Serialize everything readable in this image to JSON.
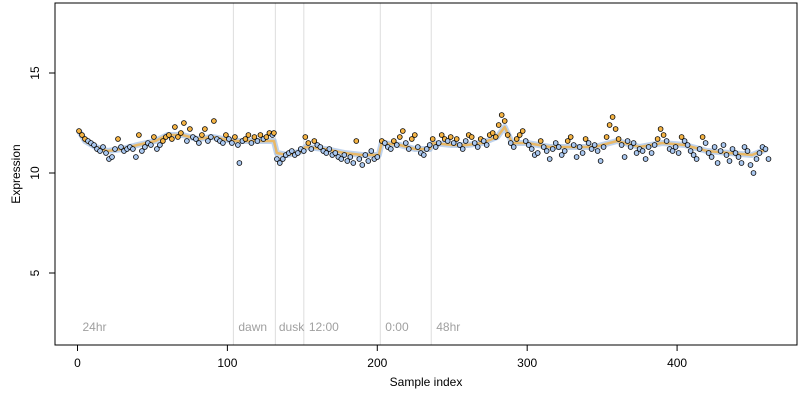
{
  "chart_data": {
    "type": "scatter",
    "title": "",
    "xlabel": "Sample index",
    "ylabel": "Expression",
    "xlim": [
      -15,
      480
    ],
    "ylim": [
      1.4,
      18.5
    ],
    "x_ticks": [
      0,
      100,
      200,
      300,
      400
    ],
    "y_ticks": [
      5,
      10,
      15
    ],
    "grid": false,
    "legend": "none",
    "colors": {
      "line": "#f0b450",
      "band": "#8aaee0",
      "point_orange": "#f5b445",
      "point_blue": "#aac8f0",
      "point_stroke": "#000000",
      "separator": "#dddddd",
      "condition_text": "#a0a0a0"
    },
    "separators": [
      104,
      132,
      151,
      202,
      236
    ],
    "condition_labels": [
      {
        "text": "24hr",
        "x": 2
      },
      {
        "text": "dawn",
        "x": 106
      },
      {
        "text": "dusk",
        "x": 133
      },
      {
        "text": "12:00",
        "x": 153
      },
      {
        "text": "0:00",
        "x": 204
      },
      {
        "text": "48hr",
        "x": 238
      }
    ],
    "trend": [
      [
        1,
        12.1
      ],
      [
        5,
        11.6
      ],
      [
        12,
        11.3
      ],
      [
        20,
        11.1
      ],
      [
        30,
        11.2
      ],
      [
        40,
        11.4
      ],
      [
        52,
        11.6
      ],
      [
        60,
        11.9
      ],
      [
        70,
        11.9
      ],
      [
        80,
        11.7
      ],
      [
        90,
        11.8
      ],
      [
        104,
        11.6
      ],
      [
        104,
        11.6
      ],
      [
        118,
        11.6
      ],
      [
        131,
        11.6
      ],
      [
        133,
        11.0
      ],
      [
        140,
        10.9
      ],
      [
        150,
        11.1
      ],
      [
        152,
        11.3
      ],
      [
        165,
        11.2
      ],
      [
        178,
        11.0
      ],
      [
        190,
        10.9
      ],
      [
        201,
        10.9
      ],
      [
        203,
        11.5
      ],
      [
        215,
        11.4
      ],
      [
        225,
        11.2
      ],
      [
        235,
        11.2
      ],
      [
        237,
        11.5
      ],
      [
        250,
        11.4
      ],
      [
        260,
        11.4
      ],
      [
        270,
        11.5
      ],
      [
        280,
        11.8
      ],
      [
        285,
        12.3
      ],
      [
        290,
        11.5
      ],
      [
        300,
        11.5
      ],
      [
        315,
        11.3
      ],
      [
        330,
        11.3
      ],
      [
        345,
        11.3
      ],
      [
        360,
        11.6
      ],
      [
        375,
        11.3
      ],
      [
        390,
        11.5
      ],
      [
        405,
        11.4
      ],
      [
        420,
        11.1
      ],
      [
        435,
        11.0
      ],
      [
        450,
        10.9
      ],
      [
        460,
        11.2
      ]
    ],
    "points": [
      [
        1,
        12.1,
        "o"
      ],
      [
        3,
        11.9,
        "o"
      ],
      [
        5,
        11.7,
        "o"
      ],
      [
        7,
        11.6,
        "b"
      ],
      [
        9,
        11.5,
        "b"
      ],
      [
        11,
        11.4,
        "b"
      ],
      [
        13,
        11.2,
        "b"
      ],
      [
        15,
        11.1,
        "b"
      ],
      [
        17,
        11.3,
        "b"
      ],
      [
        19,
        11.0,
        "b"
      ],
      [
        21,
        10.7,
        "b"
      ],
      [
        23,
        10.8,
        "b"
      ],
      [
        25,
        11.2,
        "b"
      ],
      [
        27,
        11.7,
        "o"
      ],
      [
        29,
        11.3,
        "b"
      ],
      [
        31,
        11.1,
        "b"
      ],
      [
        33,
        11.2,
        "b"
      ],
      [
        35,
        11.3,
        "b"
      ],
      [
        37,
        11.2,
        "b"
      ],
      [
        39,
        10.8,
        "b"
      ],
      [
        41,
        11.9,
        "o"
      ],
      [
        43,
        11.1,
        "b"
      ],
      [
        45,
        11.3,
        "b"
      ],
      [
        47,
        11.5,
        "b"
      ],
      [
        49,
        11.4,
        "b"
      ],
      [
        51,
        11.8,
        "o"
      ],
      [
        53,
        11.2,
        "b"
      ],
      [
        55,
        11.4,
        "b"
      ],
      [
        57,
        11.6,
        "o"
      ],
      [
        59,
        11.8,
        "o"
      ],
      [
        61,
        11.9,
        "o"
      ],
      [
        63,
        11.7,
        "o"
      ],
      [
        65,
        12.3,
        "o"
      ],
      [
        67,
        11.8,
        "o"
      ],
      [
        69,
        12.0,
        "o"
      ],
      [
        71,
        12.5,
        "o"
      ],
      [
        73,
        11.6,
        "b"
      ],
      [
        75,
        12.2,
        "o"
      ],
      [
        77,
        11.8,
        "b"
      ],
      [
        79,
        11.7,
        "b"
      ],
      [
        81,
        11.5,
        "b"
      ],
      [
        83,
        11.9,
        "o"
      ],
      [
        85,
        12.2,
        "o"
      ],
      [
        87,
        11.6,
        "b"
      ],
      [
        89,
        11.8,
        "b"
      ],
      [
        91,
        12.6,
        "o"
      ],
      [
        93,
        11.7,
        "b"
      ],
      [
        95,
        11.6,
        "b"
      ],
      [
        97,
        11.5,
        "b"
      ],
      [
        99,
        11.9,
        "o"
      ],
      [
        101,
        11.7,
        "b"
      ],
      [
        103,
        11.5,
        "b"
      ],
      [
        105,
        11.8,
        "o"
      ],
      [
        107,
        11.4,
        "b"
      ],
      [
        108,
        10.5,
        "b"
      ],
      [
        110,
        11.6,
        "b"
      ],
      [
        112,
        11.7,
        "o"
      ],
      [
        114,
        11.9,
        "o"
      ],
      [
        116,
        11.5,
        "b"
      ],
      [
        118,
        11.8,
        "o"
      ],
      [
        120,
        11.6,
        "b"
      ],
      [
        122,
        11.9,
        "o"
      ],
      [
        124,
        11.7,
        "b"
      ],
      [
        126,
        11.8,
        "o"
      ],
      [
        128,
        12.0,
        "o"
      ],
      [
        130,
        11.9,
        "b"
      ],
      [
        131,
        12.0,
        "o"
      ],
      [
        133,
        10.7,
        "b"
      ],
      [
        135,
        10.5,
        "b"
      ],
      [
        137,
        10.7,
        "b"
      ],
      [
        139,
        10.9,
        "b"
      ],
      [
        141,
        11.0,
        "b"
      ],
      [
        143,
        11.1,
        "b"
      ],
      [
        145,
        10.9,
        "b"
      ],
      [
        147,
        11.0,
        "b"
      ],
      [
        149,
        11.2,
        "b"
      ],
      [
        151,
        11.1,
        "b"
      ],
      [
        152,
        11.8,
        "o"
      ],
      [
        154,
        11.5,
        "o"
      ],
      [
        156,
        11.2,
        "b"
      ],
      [
        158,
        11.6,
        "o"
      ],
      [
        160,
        11.4,
        "b"
      ],
      [
        162,
        11.3,
        "b"
      ],
      [
        164,
        11.1,
        "b"
      ],
      [
        166,
        11.0,
        "b"
      ],
      [
        168,
        11.2,
        "b"
      ],
      [
        170,
        10.9,
        "b"
      ],
      [
        172,
        11.0,
        "b"
      ],
      [
        174,
        10.8,
        "b"
      ],
      [
        176,
        10.7,
        "b"
      ],
      [
        178,
        10.9,
        "b"
      ],
      [
        180,
        10.6,
        "b"
      ],
      [
        182,
        10.8,
        "b"
      ],
      [
        184,
        10.5,
        "b"
      ],
      [
        186,
        11.6,
        "o"
      ],
      [
        188,
        10.7,
        "b"
      ],
      [
        190,
        10.4,
        "b"
      ],
      [
        192,
        10.9,
        "b"
      ],
      [
        194,
        10.6,
        "b"
      ],
      [
        196,
        11.1,
        "b"
      ],
      [
        198,
        10.7,
        "b"
      ],
      [
        200,
        10.8,
        "b"
      ],
      [
        203,
        11.6,
        "o"
      ],
      [
        205,
        11.5,
        "b"
      ],
      [
        207,
        11.3,
        "b"
      ],
      [
        209,
        11.2,
        "b"
      ],
      [
        211,
        11.6,
        "o"
      ],
      [
        213,
        11.4,
        "b"
      ],
      [
        215,
        11.8,
        "o"
      ],
      [
        217,
        12.1,
        "o"
      ],
      [
        219,
        11.5,
        "b"
      ],
      [
        221,
        11.2,
        "b"
      ],
      [
        223,
        11.7,
        "o"
      ],
      [
        225,
        11.9,
        "o"
      ],
      [
        227,
        11.3,
        "b"
      ],
      [
        229,
        11.0,
        "b"
      ],
      [
        231,
        10.9,
        "b"
      ],
      [
        233,
        11.2,
        "b"
      ],
      [
        235,
        11.4,
        "b"
      ],
      [
        237,
        11.7,
        "o"
      ],
      [
        239,
        11.3,
        "b"
      ],
      [
        241,
        11.5,
        "b"
      ],
      [
        243,
        11.9,
        "o"
      ],
      [
        245,
        11.7,
        "o"
      ],
      [
        247,
        11.6,
        "b"
      ],
      [
        249,
        11.8,
        "o"
      ],
      [
        251,
        11.5,
        "b"
      ],
      [
        253,
        11.7,
        "o"
      ],
      [
        255,
        11.4,
        "b"
      ],
      [
        257,
        11.2,
        "b"
      ],
      [
        259,
        11.6,
        "b"
      ],
      [
        261,
        11.9,
        "o"
      ],
      [
        263,
        11.8,
        "o"
      ],
      [
        265,
        11.5,
        "b"
      ],
      [
        267,
        11.3,
        "b"
      ],
      [
        269,
        11.7,
        "o"
      ],
      [
        271,
        11.6,
        "b"
      ],
      [
        273,
        11.4,
        "b"
      ],
      [
        275,
        11.9,
        "o"
      ],
      [
        277,
        12.0,
        "o"
      ],
      [
        279,
        11.8,
        "o"
      ],
      [
        281,
        12.4,
        "o"
      ],
      [
        283,
        12.9,
        "o"
      ],
      [
        285,
        12.6,
        "o"
      ],
      [
        287,
        11.9,
        "o"
      ],
      [
        289,
        11.5,
        "b"
      ],
      [
        291,
        11.3,
        "b"
      ],
      [
        293,
        11.7,
        "o"
      ],
      [
        295,
        11.9,
        "o"
      ],
      [
        297,
        12.1,
        "o"
      ],
      [
        299,
        11.6,
        "b"
      ],
      [
        301,
        11.4,
        "b"
      ],
      [
        303,
        11.2,
        "b"
      ],
      [
        305,
        10.9,
        "b"
      ],
      [
        307,
        11.0,
        "b"
      ],
      [
        309,
        11.6,
        "o"
      ],
      [
        311,
        11.3,
        "b"
      ],
      [
        313,
        11.1,
        "b"
      ],
      [
        315,
        10.7,
        "b"
      ],
      [
        317,
        11.2,
        "b"
      ],
      [
        319,
        11.5,
        "b"
      ],
      [
        321,
        11.3,
        "b"
      ],
      [
        323,
        10.9,
        "b"
      ],
      [
        325,
        11.1,
        "b"
      ],
      [
        327,
        11.6,
        "o"
      ],
      [
        329,
        11.8,
        "o"
      ],
      [
        331,
        11.4,
        "b"
      ],
      [
        333,
        10.8,
        "b"
      ],
      [
        335,
        11.3,
        "b"
      ],
      [
        337,
        11.0,
        "b"
      ],
      [
        339,
        11.7,
        "o"
      ],
      [
        341,
        11.5,
        "b"
      ],
      [
        343,
        11.2,
        "b"
      ],
      [
        345,
        11.4,
        "b"
      ],
      [
        347,
        11.1,
        "b"
      ],
      [
        349,
        10.6,
        "b"
      ],
      [
        351,
        11.3,
        "b"
      ],
      [
        353,
        11.8,
        "o"
      ],
      [
        355,
        12.4,
        "o"
      ],
      [
        357,
        12.8,
        "o"
      ],
      [
        359,
        12.2,
        "o"
      ],
      [
        361,
        11.7,
        "o"
      ],
      [
        363,
        11.4,
        "b"
      ],
      [
        365,
        10.8,
        "b"
      ],
      [
        367,
        11.6,
        "b"
      ],
      [
        369,
        11.3,
        "b"
      ],
      [
        371,
        11.5,
        "b"
      ],
      [
        373,
        11.0,
        "b"
      ],
      [
        375,
        11.2,
        "b"
      ],
      [
        377,
        11.1,
        "b"
      ],
      [
        379,
        10.7,
        "b"
      ],
      [
        381,
        11.3,
        "b"
      ],
      [
        383,
        11.0,
        "b"
      ],
      [
        385,
        11.4,
        "b"
      ],
      [
        387,
        11.7,
        "o"
      ],
      [
        389,
        12.2,
        "o"
      ],
      [
        391,
        11.9,
        "o"
      ],
      [
        393,
        11.6,
        "b"
      ],
      [
        395,
        11.2,
        "b"
      ],
      [
        397,
        11.1,
        "b"
      ],
      [
        399,
        11.3,
        "b"
      ],
      [
        401,
        11.0,
        "b"
      ],
      [
        403,
        11.8,
        "o"
      ],
      [
        405,
        11.6,
        "b"
      ],
      [
        407,
        11.4,
        "b"
      ],
      [
        409,
        11.1,
        "b"
      ],
      [
        411,
        10.9,
        "b"
      ],
      [
        413,
        10.7,
        "b"
      ],
      [
        415,
        11.2,
        "b"
      ],
      [
        417,
        11.8,
        "o"
      ],
      [
        419,
        11.5,
        "b"
      ],
      [
        421,
        11.0,
        "b"
      ],
      [
        423,
        10.8,
        "b"
      ],
      [
        425,
        11.3,
        "b"
      ],
      [
        427,
        10.5,
        "b"
      ],
      [
        429,
        11.1,
        "b"
      ],
      [
        431,
        11.4,
        "b"
      ],
      [
        433,
        10.9,
        "b"
      ],
      [
        435,
        10.6,
        "b"
      ],
      [
        437,
        11.2,
        "b"
      ],
      [
        439,
        11.0,
        "b"
      ],
      [
        441,
        10.8,
        "b"
      ],
      [
        443,
        10.5,
        "b"
      ],
      [
        445,
        11.3,
        "b"
      ],
      [
        447,
        11.1,
        "b"
      ],
      [
        449,
        10.4,
        "b"
      ],
      [
        451,
        10.0,
        "b"
      ],
      [
        453,
        10.7,
        "b"
      ],
      [
        455,
        11.0,
        "b"
      ],
      [
        457,
        11.3,
        "b"
      ],
      [
        459,
        11.2,
        "b"
      ],
      [
        461,
        10.7,
        "b"
      ]
    ]
  }
}
